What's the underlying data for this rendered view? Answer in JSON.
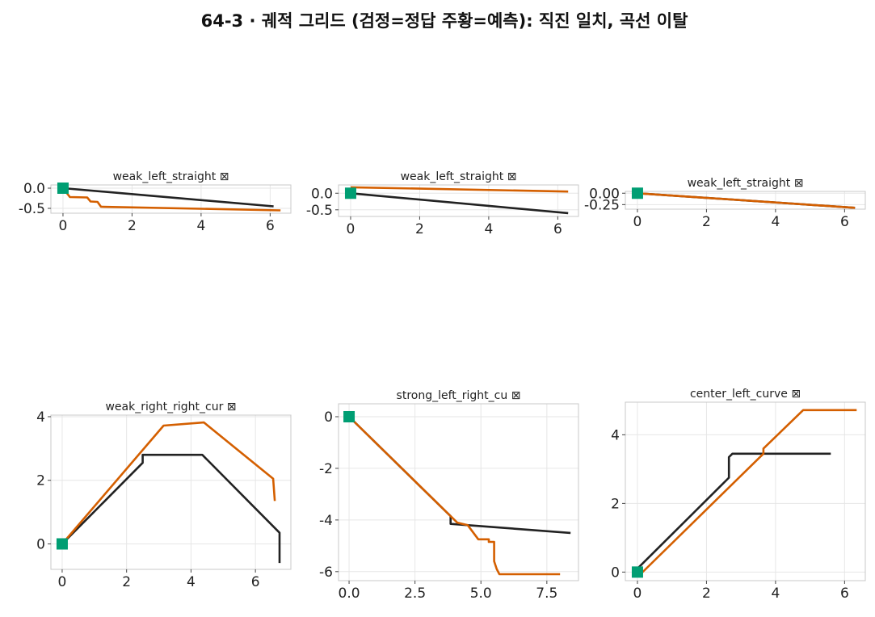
{
  "figure": {
    "title": "64-3 · 궤적 그리드 (검정=정답 주황=예측): 직진 일치, 곡선 이탈"
  },
  "colors": {
    "truth": "#222222",
    "prediction": "#d45f00",
    "start_marker": "#009e73"
  },
  "chart_data": [
    {
      "type": "line",
      "title": "weak_left_straight ⊠",
      "xlim": [
        -0.35,
        6.6
      ],
      "ylim": [
        -0.62,
        0.08
      ],
      "xticks": [
        0,
        2,
        4,
        6
      ],
      "yticks": [
        0.0,
        -0.5
      ],
      "xtick_labels": [
        "0",
        "2",
        "4",
        "6"
      ],
      "ytick_labels": [
        "0.0",
        "-0.5"
      ],
      "grid": true,
      "series": [
        {
          "role": "truth",
          "x": [
            0,
            6.1
          ],
          "y": [
            0,
            -0.45
          ]
        },
        {
          "role": "prediction",
          "x": [
            0,
            0.2,
            0.7,
            0.8,
            1.0,
            1.1,
            6.3
          ],
          "y": [
            0,
            -0.22,
            -0.23,
            -0.33,
            -0.34,
            -0.46,
            -0.55
          ]
        }
      ],
      "start": [
        0,
        0
      ]
    },
    {
      "type": "line",
      "title": "weak_left_straight ⊠",
      "xlim": [
        -0.35,
        6.6
      ],
      "ylim": [
        -0.7,
        0.25
      ],
      "xticks": [
        0,
        2,
        4,
        6
      ],
      "yticks": [
        0.0,
        -0.5
      ],
      "xtick_labels": [
        "0",
        "2",
        "4",
        "6"
      ],
      "ytick_labels": [
        "0.0",
        "-0.5"
      ],
      "grid": true,
      "series": [
        {
          "role": "truth",
          "x": [
            0,
            6.3
          ],
          "y": [
            0,
            -0.6
          ]
        },
        {
          "role": "prediction",
          "x": [
            0,
            6.3
          ],
          "y": [
            0.18,
            0.05
          ]
        }
      ],
      "start": [
        0,
        0
      ]
    },
    {
      "type": "line",
      "title": "weak_left_straight ⊠",
      "xlim": [
        -0.35,
        6.6
      ],
      "ylim": [
        -0.35,
        0.04
      ],
      "xticks": [
        0,
        2,
        4,
        6
      ],
      "yticks": [
        0.0,
        -0.25
      ],
      "xtick_labels": [
        "0",
        "2",
        "4",
        "6"
      ],
      "ytick_labels": [
        "0.00",
        "-0.25"
      ],
      "grid": true,
      "series": [
        {
          "role": "truth",
          "x": [
            0,
            6.3
          ],
          "y": [
            0,
            -0.32
          ]
        },
        {
          "role": "prediction",
          "x": [
            0,
            6.3
          ],
          "y": [
            0,
            -0.32
          ]
        }
      ],
      "start": [
        0,
        0
      ]
    },
    {
      "type": "line",
      "title": "weak_right_right_cur ⊠",
      "xlim": [
        -0.35,
        7.1
      ],
      "ylim": [
        -0.8,
        4.05
      ],
      "xticks": [
        0,
        2,
        4,
        6
      ],
      "yticks": [
        0,
        2,
        4
      ],
      "xtick_labels": [
        "0",
        "2",
        "4",
        "6"
      ],
      "ytick_labels": [
        "0",
        "2",
        "4"
      ],
      "grid": true,
      "series": [
        {
          "role": "truth",
          "x": [
            0,
            2.5,
            2.5,
            4.35,
            6.75,
            6.75
          ],
          "y": [
            0,
            2.55,
            2.8,
            2.8,
            0.35,
            -0.6
          ]
        },
        {
          "role": "prediction",
          "x": [
            0,
            3.15,
            4.4,
            6.55,
            6.6
          ],
          "y": [
            0,
            3.72,
            3.82,
            2.05,
            1.35
          ]
        }
      ],
      "start": [
        0,
        0
      ]
    },
    {
      "type": "line",
      "title": "strong_left_right_cu ⊠",
      "xlim": [
        -0.4,
        8.7
      ],
      "ylim": [
        -6.35,
        0.5
      ],
      "xticks": [
        0,
        2.5,
        5,
        7.5
      ],
      "yticks": [
        0,
        -2,
        -4,
        -6
      ],
      "xtick_labels": [
        "0.0",
        "2.5",
        "5.0",
        "7.5"
      ],
      "ytick_labels": [
        "0",
        "-2",
        "-4",
        "-6"
      ],
      "grid": true,
      "series": [
        {
          "role": "truth",
          "x": [
            0,
            3.85,
            3.85,
            8.4
          ],
          "y": [
            0,
            -3.85,
            -4.15,
            -4.5
          ]
        },
        {
          "role": "prediction",
          "x": [
            0,
            4.1,
            4.5,
            4.9,
            5.3,
            5.3,
            5.5,
            5.5,
            5.6,
            5.7,
            8.0
          ],
          "y": [
            0,
            -4.1,
            -4.2,
            -4.75,
            -4.75,
            -4.85,
            -4.85,
            -5.6,
            -5.9,
            -6.1,
            -6.1
          ]
        }
      ],
      "start": [
        0,
        0
      ]
    },
    {
      "type": "line",
      "title": "center_left_curve ⊠",
      "xlim": [
        -0.35,
        6.6
      ],
      "ylim": [
        -0.25,
        4.95
      ],
      "xticks": [
        0,
        2,
        4,
        6
      ],
      "yticks": [
        0,
        2,
        4
      ],
      "xtick_labels": [
        "0",
        "2",
        "4",
        "6"
      ],
      "ytick_labels": [
        "0",
        "2",
        "4"
      ],
      "grid": true,
      "series": [
        {
          "role": "truth",
          "x": [
            0,
            2.65,
            2.65,
            2.75,
            5.6
          ],
          "y": [
            0.1,
            2.75,
            3.35,
            3.45,
            3.45
          ]
        },
        {
          "role": "prediction",
          "x": [
            0.1,
            3.65,
            3.65,
            4.8,
            6.35
          ],
          "y": [
            -0.05,
            3.45,
            3.6,
            4.72,
            4.72
          ]
        }
      ],
      "start": [
        0,
        0
      ]
    }
  ]
}
